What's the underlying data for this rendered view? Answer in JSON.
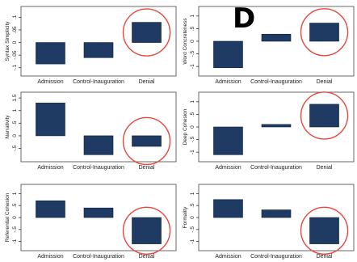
{
  "figure": {
    "panel_letter": "D",
    "bar_color": "#1f3a63",
    "highlight_color": "#e8473b"
  },
  "chart_data": [
    {
      "type": "bar",
      "ylabel": "Syntax Simplicity",
      "categories": [
        "Admission",
        "Control-Inauguration",
        "Denial"
      ],
      "values": [
        -0.085,
        -0.06,
        0.08
      ],
      "ylim": [
        -0.12,
        0.13
      ],
      "yticks": [
        -0.1,
        -0.05,
        0,
        0.05,
        0.1
      ],
      "ytick_labels": [
        "-.1",
        "-.05",
        "0",
        ".05",
        ".1"
      ],
      "highlight": "Denial"
    },
    {
      "type": "bar",
      "ylabel": "Word Concreteness",
      "categories": [
        "Admission",
        "Control-Inauguration",
        "Denial"
      ],
      "values": [
        -1.05,
        0.28,
        0.72
      ],
      "ylim": [
        -1.25,
        1.25
      ],
      "yticks": [
        -1,
        -0.5,
        0,
        0.5,
        1
      ],
      "ytick_labels": [
        "-1",
        "-.5",
        "0",
        ".5",
        "1"
      ],
      "highlight": "Denial"
    },
    {
      "type": "bar",
      "ylabel": "Narrativity",
      "categories": [
        "Admission",
        "Control-Inauguration",
        "Denial"
      ],
      "values": [
        1.3,
        -0.75,
        -0.42
      ],
      "ylim": [
        -0.9,
        1.6
      ],
      "yticks": [
        -0.5,
        0,
        0.5,
        1,
        1.5
      ],
      "ytick_labels": [
        "-.5",
        "0",
        ".5",
        "1",
        "1.5"
      ],
      "highlight": "Denial"
    },
    {
      "type": "bar",
      "ylabel": "Deep Cohesion",
      "categories": [
        "Admission",
        "Control-Inauguration",
        "Denial"
      ],
      "values": [
        -1.1,
        0.1,
        0.9
      ],
      "ylim": [
        -1.25,
        1.25
      ],
      "yticks": [
        -1,
        -0.5,
        0,
        0.5,
        1
      ],
      "ytick_labels": [
        "-1",
        "-.5",
        "0",
        ".5",
        "1"
      ],
      "highlight": "Denial"
    },
    {
      "type": "bar",
      "ylabel": "Referential Cohesion",
      "categories": [
        "Admission",
        "Control-Inauguration",
        "Denial"
      ],
      "values": [
        0.7,
        0.4,
        -1.1
      ],
      "ylim": [
        -1.25,
        1.25
      ],
      "yticks": [
        -1,
        -0.5,
        0,
        0.5,
        1
      ],
      "ytick_labels": [
        "-1",
        "-.5",
        "0",
        ".5",
        "1"
      ],
      "highlight": "Denial"
    },
    {
      "type": "bar",
      "ylabel": "Formality",
      "categories": [
        "Admission",
        "Control-Inauguration",
        "Denial"
      ],
      "values": [
        0.75,
        0.32,
        -1.1
      ],
      "ylim": [
        -1.25,
        1.25
      ],
      "yticks": [
        -1,
        -0.5,
        0,
        0.5,
        1
      ],
      "ytick_labels": [
        "-1",
        "-.5",
        "0",
        ".5",
        "1"
      ],
      "highlight": "Denial"
    }
  ]
}
